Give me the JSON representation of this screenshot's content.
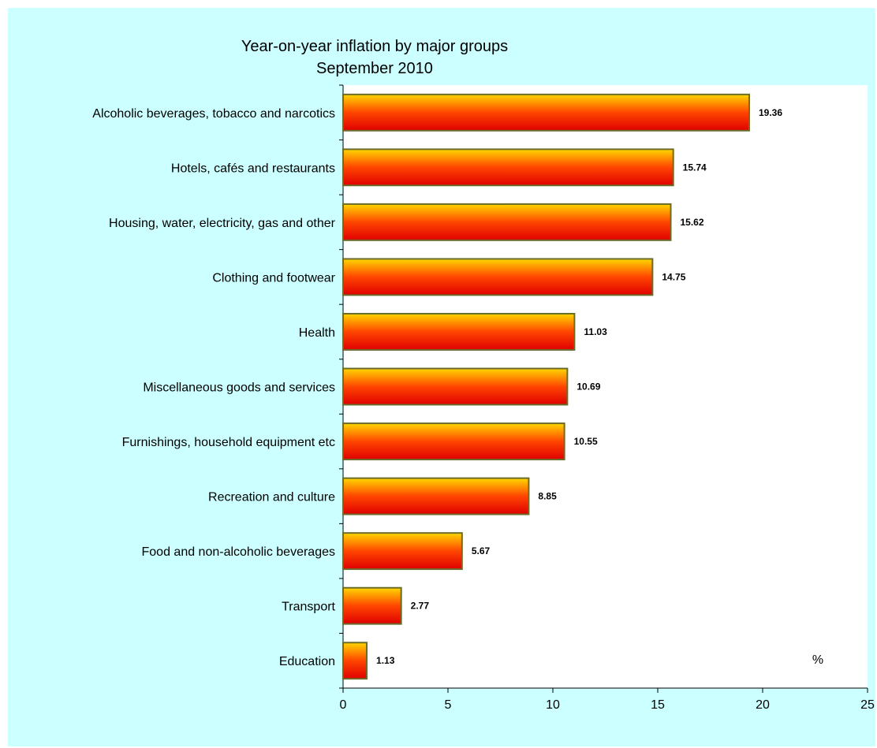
{
  "chart_data": {
    "type": "bar",
    "orientation": "horizontal",
    "title": "Year-on-year inflation by major groups",
    "subtitle": "September 2010",
    "unit": "%",
    "categories": [
      "Alcoholic beverages, tobacco and narcotics",
      "Hotels, cafés and restaurants",
      "Housing, water, electricity, gas and other",
      "Clothing and footwear",
      "Health",
      "Miscellaneous goods and services",
      "Furnishings, household equipment etc",
      "Recreation and culture",
      "Food and non-alcoholic beverages",
      "Transport",
      "Education"
    ],
    "values": [
      19.36,
      15.74,
      15.62,
      14.75,
      11.03,
      10.69,
      10.55,
      8.85,
      5.67,
      2.77,
      1.13
    ],
    "value_labels": [
      "19.36",
      "15.74",
      "15.62",
      "14.75",
      "11.03",
      "10.69",
      "10.55",
      "8.85",
      "5.67",
      "2.77",
      "1.13"
    ],
    "xlim": [
      0,
      25
    ],
    "xticks": [
      "0",
      "5",
      "10",
      "15",
      "20",
      "25"
    ],
    "grid": false,
    "legend": "none",
    "colors": {
      "background": "#ccffff",
      "plot_area": "#ffffff",
      "bar_top": "#ffd700",
      "bar_mid": "#ff4500",
      "bar_bottom": "#e00000",
      "bar_border": "#6b6b2a"
    }
  }
}
